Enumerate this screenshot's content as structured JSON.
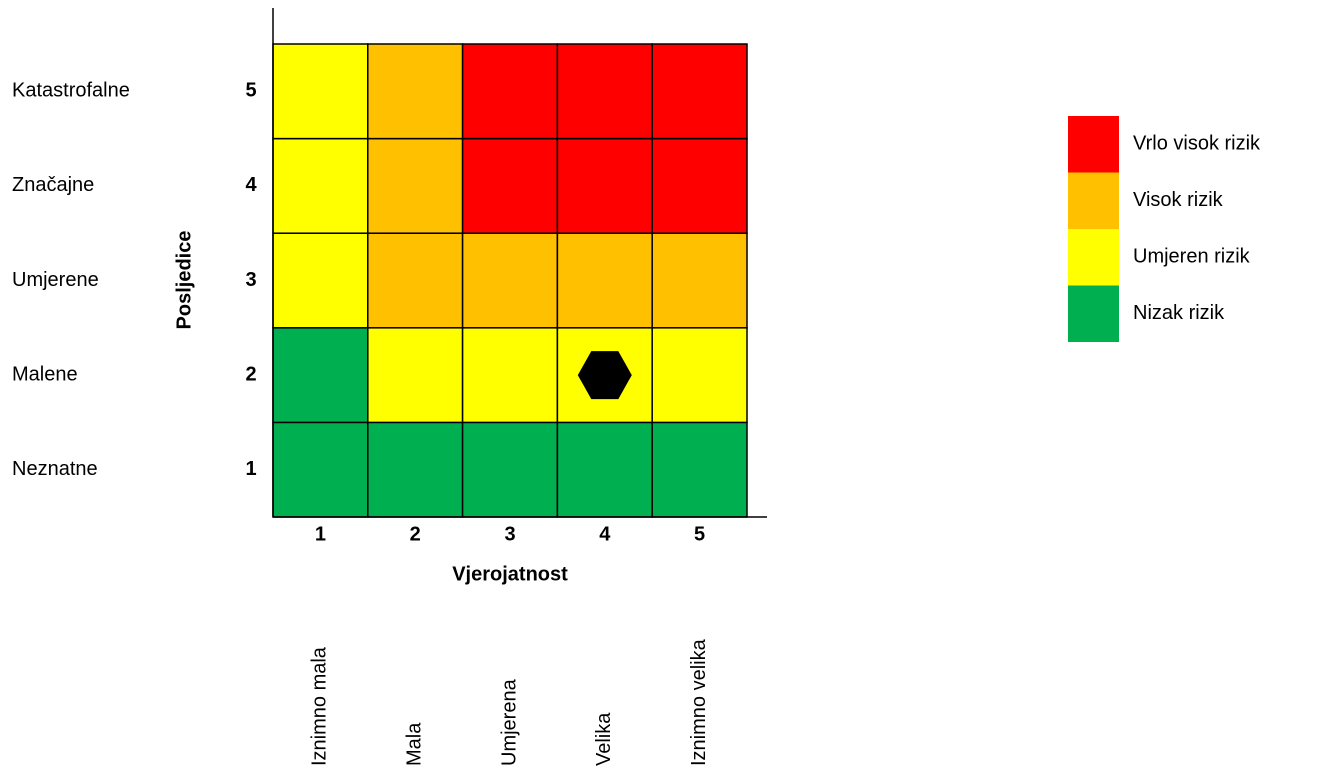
{
  "chart_data": {
    "type": "risk-matrix",
    "x_label": "Vjerojatnost",
    "y_label": "Posljedice",
    "xlim": [
      0.5,
      5.5
    ],
    "ylim": [
      0.5,
      5.5
    ],
    "xticks": [
      1,
      2,
      3,
      4,
      5
    ],
    "yticks": [
      1,
      2,
      3,
      4,
      5
    ],
    "x_descriptions": [
      "Iznimno mala",
      "Mala",
      "Umjerena",
      "Velika",
      "Iznimno velika"
    ],
    "y_descriptions": [
      "Neznatne",
      "Malene",
      "Umjerene",
      "Značajne",
      "Katastrofalne"
    ],
    "cell_colors": [
      [
        "#00b050",
        "#00b050",
        "#00b050",
        "#00b050",
        "#00b050"
      ],
      [
        "#00b050",
        "#ffff00",
        "#ffff00",
        "#ffff00",
        "#ffff00"
      ],
      [
        "#ffff00",
        "#ffc000",
        "#ffc000",
        "#ffc000",
        "#ffc000"
      ],
      [
        "#ffff00",
        "#ffc000",
        "#ff0000",
        "#ff0000",
        "#ff0000"
      ],
      [
        "#ffff00",
        "#ffc000",
        "#ff0000",
        "#ff0000",
        "#ff0000"
      ]
    ],
    "legend": [
      {
        "name": "Vrlo visok rizik",
        "color": "#ff0000"
      },
      {
        "name": "Visok rizik",
        "color": "#ffc000"
      },
      {
        "name": "Umjeren rizik",
        "color": "#ffff00"
      },
      {
        "name": "Nizak rizik",
        "color": "#00b050"
      }
    ],
    "marker": {
      "x": 4,
      "y": 2,
      "shape": "hexagon",
      "color": "#000000"
    }
  }
}
